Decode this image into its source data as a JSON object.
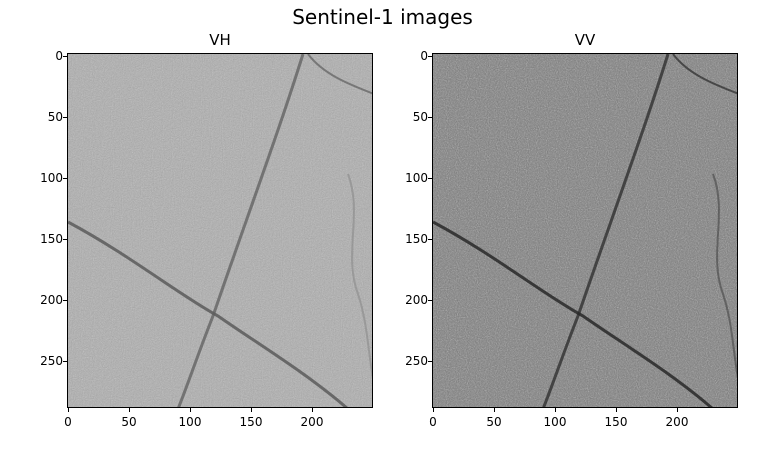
{
  "figure": {
    "title": "Sentinel-1 images"
  },
  "panels": [
    {
      "id": "vh",
      "title": "VH",
      "base_color": "#aeaeae",
      "dark_color": "#6f6f6f",
      "xticks": [
        "0",
        "50",
        "100",
        "150",
        "200"
      ],
      "yticks": [
        "0",
        "50",
        "100",
        "150",
        "200",
        "250"
      ]
    },
    {
      "id": "vv",
      "title": "VV",
      "base_color": "#787878",
      "dark_color": "#3e3e3e",
      "xticks": [
        "0",
        "50",
        "100",
        "150",
        "200"
      ],
      "yticks": [
        "0",
        "50",
        "100",
        "150",
        "200",
        "250"
      ]
    }
  ]
}
